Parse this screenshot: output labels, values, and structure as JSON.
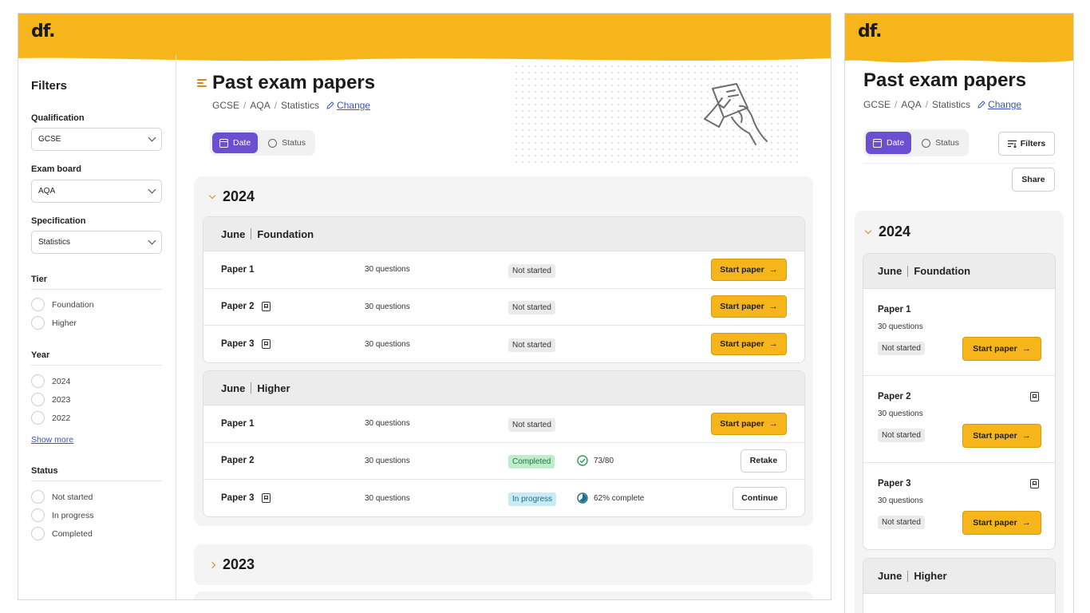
{
  "brand": {
    "logo": "df."
  },
  "filters": {
    "title": "Filters",
    "qualification": {
      "label": "Qualification",
      "value": "GCSE"
    },
    "exam_board": {
      "label": "Exam board",
      "value": "AQA"
    },
    "specification": {
      "label": "Specification",
      "value": "Statistics"
    },
    "tier": {
      "label": "Tier",
      "options": [
        "Foundation",
        "Higher"
      ]
    },
    "year": {
      "label": "Year",
      "options": [
        "2024",
        "2023",
        "2022"
      ],
      "show_more": "Show more"
    },
    "status": {
      "label": "Status",
      "options": [
        "Not started",
        "In progress",
        "Completed"
      ]
    }
  },
  "page": {
    "title": "Past exam papers",
    "breadcrumb": [
      "GCSE",
      "AQA",
      "Statistics"
    ],
    "change_label": "Change",
    "sort": {
      "date": "Date",
      "status": "Status"
    }
  },
  "years": [
    {
      "year": "2024",
      "groups": [
        {
          "month": "June",
          "tier": "Foundation",
          "papers": [
            {
              "name": "Paper 1",
              "questions": "30 questions",
              "status": "Not started",
              "action": "Start paper"
            },
            {
              "name": "Paper 2",
              "questions": "30 questions",
              "status": "Not started",
              "action": "Start paper"
            },
            {
              "name": "Paper 3",
              "questions": "30 questions",
              "status": "Not started",
              "action": "Start paper"
            }
          ]
        },
        {
          "month": "June",
          "tier": "Higher",
          "papers": [
            {
              "name": "Paper 1",
              "questions": "30 questions",
              "status": "Not started",
              "action": "Start paper"
            },
            {
              "name": "Paper 2",
              "questions": "30 questions",
              "status": "Completed",
              "score": "73/80",
              "action": "Retake"
            },
            {
              "name": "Paper 3",
              "questions": "30 questions",
              "status": "In progress",
              "progress_label": "62% complete",
              "progress": 0.62,
              "action": "Continue"
            }
          ]
        }
      ]
    },
    {
      "year": "2023"
    }
  ],
  "mobile": {
    "filters_button": "Filters",
    "share_button": "Share"
  },
  "colors": {
    "brand_yellow": "#f7b51c",
    "accent_purple": "#6a50d0",
    "accent_orange": "#e3841a"
  }
}
